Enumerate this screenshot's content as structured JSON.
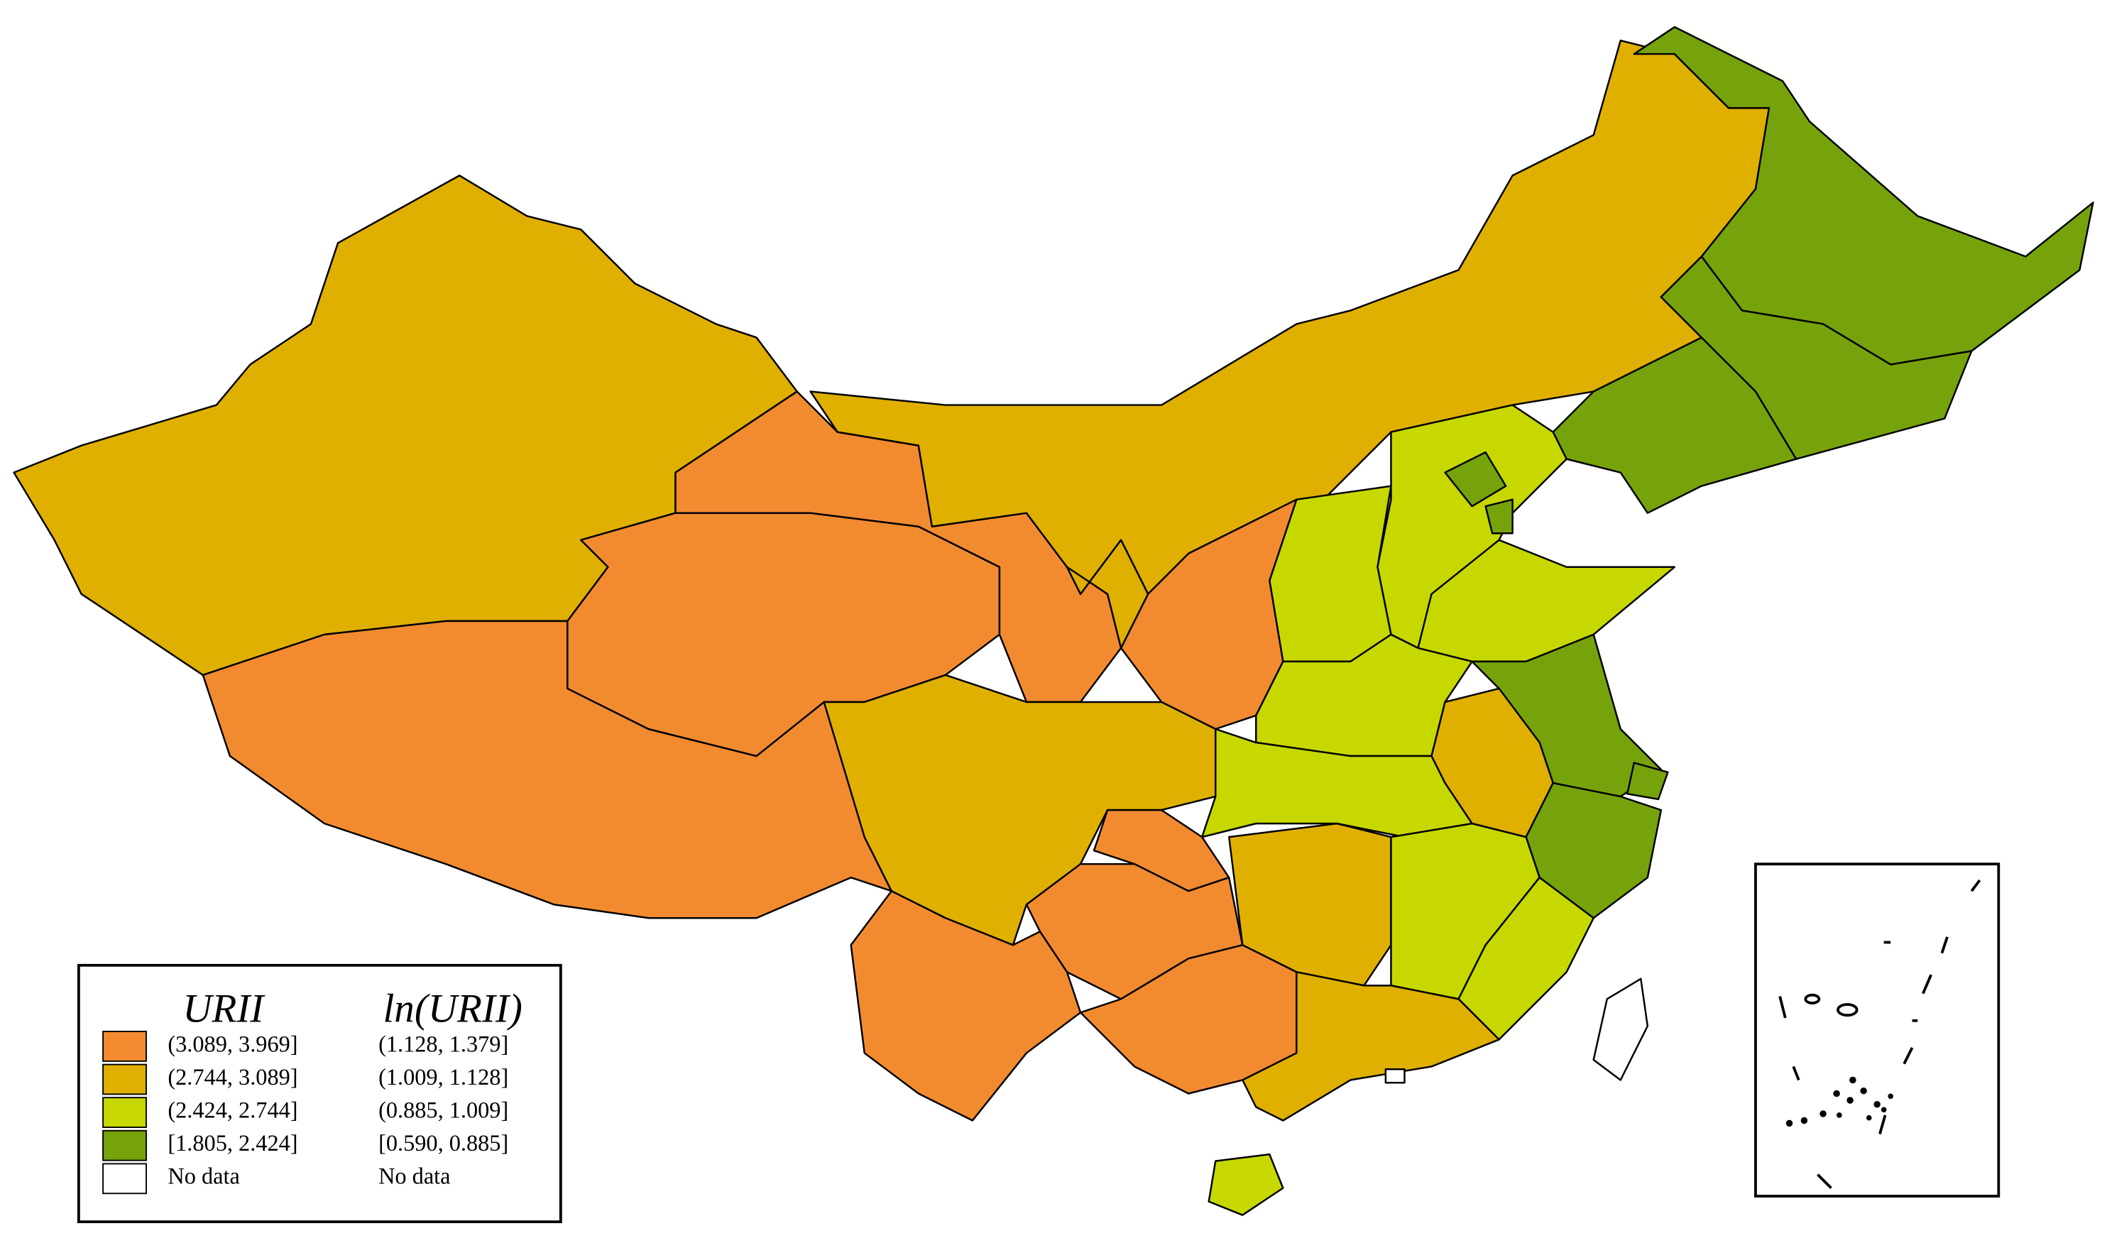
{
  "legend": {
    "headers": [
      "URII",
      "ln(URII)"
    ],
    "items": [
      {
        "urii": "(3.089, 3.969]",
        "ln": "(1.128, 1.379]",
        "color": "#f28b30"
      },
      {
        "urii": "(2.744, 3.089]",
        "ln": "(1.009, 1.128]",
        "color": "#e0b000"
      },
      {
        "urii": "(2.424, 2.744]",
        "ln": "(0.885, 1.009]",
        "color": "#c6d800"
      },
      {
        "urii": "[1.805, 2.424]",
        "ln": "[0.590, 0.885]",
        "color": "#76a30c"
      },
      {
        "urii": "No data",
        "ln": "No data",
        "color": "#ffffff"
      }
    ]
  }
}
